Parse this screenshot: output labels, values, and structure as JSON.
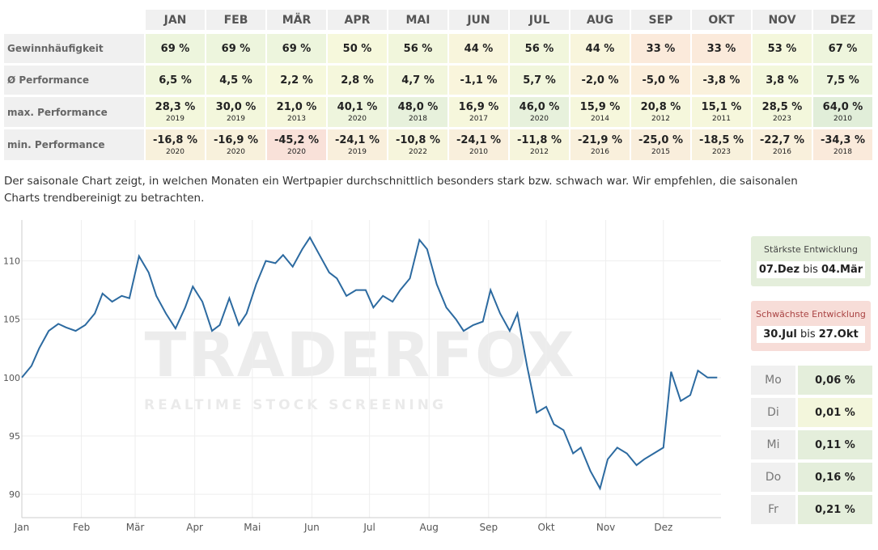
{
  "table": {
    "headers": [
      "JAN",
      "FEB",
      "MÄR",
      "APR",
      "MAI",
      "JUN",
      "JUL",
      "AUG",
      "SEP",
      "OKT",
      "NOV",
      "DEZ"
    ],
    "rows": [
      {
        "label": "Gewinnhäufigkeit",
        "cells": [
          {
            "text": "69 %"
          },
          {
            "text": "69 %"
          },
          {
            "text": "69 %"
          },
          {
            "text": "50 %"
          },
          {
            "text": "56 %"
          },
          {
            "text": "44 %"
          },
          {
            "text": "56 %"
          },
          {
            "text": "44 %"
          },
          {
            "text": "33 %"
          },
          {
            "text": "33 %"
          },
          {
            "text": "53 %"
          },
          {
            "text": "67 %"
          }
        ],
        "colors": [
          "#edf5dd",
          "#edf5dd",
          "#edf5dd",
          "#f6f8dc",
          "#f1f6dc",
          "#f8f5dc",
          "#f1f6dc",
          "#f8f5dc",
          "#fbeadb",
          "#fbeadb",
          "#f4f7dc",
          "#eef5dd"
        ]
      },
      {
        "label": "Ø Performance",
        "cells": [
          {
            "text": "6,5 %"
          },
          {
            "text": "4,5 %"
          },
          {
            "text": "2,2 %"
          },
          {
            "text": "2,8 %"
          },
          {
            "text": "4,7 %"
          },
          {
            "text": "-1,1 %"
          },
          {
            "text": "5,7 %"
          },
          {
            "text": "-2,0 %"
          },
          {
            "text": "-5,0 %"
          },
          {
            "text": "-3,8 %"
          },
          {
            "text": "3,8 %"
          },
          {
            "text": "7,5 %"
          }
        ],
        "colors": [
          "#f0f6dc",
          "#f3f7dc",
          "#f6f8dc",
          "#f5f7dc",
          "#f2f6dc",
          "#f9f5dc",
          "#f1f6dc",
          "#f9f2dc",
          "#fbeedb",
          "#faf1dc",
          "#f3f7dc",
          "#edf5dd"
        ]
      },
      {
        "label": "max. Performance",
        "cells": [
          {
            "text": "28,3 %",
            "sub": "2019"
          },
          {
            "text": "30,0 %",
            "sub": "2019"
          },
          {
            "text": "21,0 %",
            "sub": "2013"
          },
          {
            "text": "40,1 %",
            "sub": "2020"
          },
          {
            "text": "48,0 %",
            "sub": "2018"
          },
          {
            "text": "16,9 %",
            "sub": "2017"
          },
          {
            "text": "46,0 %",
            "sub": "2020"
          },
          {
            "text": "15,9 %",
            "sub": "2014"
          },
          {
            "text": "20,8 %",
            "sub": "2012"
          },
          {
            "text": "15,1 %",
            "sub": "2011"
          },
          {
            "text": "28,5 %",
            "sub": "2023"
          },
          {
            "text": "64,0 %",
            "sub": "2010"
          }
        ],
        "colors": [
          "#f3f7dc",
          "#f3f7dc",
          "#f5f7dc",
          "#eef5dd",
          "#e7f1dc",
          "#f6f7dc",
          "#e7f1dc",
          "#f6f7dc",
          "#f5f7dc",
          "#f6f7dc",
          "#f3f7dc",
          "#e1eed9"
        ]
      },
      {
        "label": "min. Performance",
        "cells": [
          {
            "text": "-16,8 %",
            "sub": "2020"
          },
          {
            "text": "-16,9 %",
            "sub": "2020"
          },
          {
            "text": "-45,2 %",
            "sub": "2020"
          },
          {
            "text": "-24,1 %",
            "sub": "2019"
          },
          {
            "text": "-10,8 %",
            "sub": "2022"
          },
          {
            "text": "-24,1 %",
            "sub": "2010"
          },
          {
            "text": "-11,8 %",
            "sub": "2012"
          },
          {
            "text": "-21,9 %",
            "sub": "2016"
          },
          {
            "text": "-25,0 %",
            "sub": "2015"
          },
          {
            "text": "-18,5 %",
            "sub": "2023"
          },
          {
            "text": "-22,7 %",
            "sub": "2016"
          },
          {
            "text": "-34,3 %",
            "sub": "2018"
          }
        ],
        "colors": [
          "#f8f1dc",
          "#f8f1dc",
          "#f9e1d9",
          "#f9efdc",
          "#f6f5dc",
          "#f9efdc",
          "#f6f5dc",
          "#f9f0dc",
          "#f9eedc",
          "#f8f1dc",
          "#f9f0dc",
          "#faeadb"
        ]
      }
    ]
  },
  "description": "Der saisonale Chart zeigt, in welchen Monaten ein Wertpapier durchschnittlich besonders stark bzw. schwach war. Wir empfehlen, die saisonalen Charts trendbereinigt zu betrachten.",
  "chart_data": {
    "type": "line",
    "color": "#2c6aa0",
    "grid": true,
    "watermark": {
      "brand": "TRADERFOX",
      "tagline": "REALTIME STOCK SCREENING"
    },
    "x": [
      1,
      6,
      10,
      15,
      20,
      24,
      29,
      34,
      39,
      43,
      48,
      53,
      57,
      62,
      67,
      71,
      76,
      81,
      86,
      90,
      95,
      100,
      104,
      109,
      114,
      118,
      123,
      128,
      133,
      137,
      142,
      147,
      151,
      156,
      161,
      165,
      170,
      175,
      180,
      184,
      189,
      194,
      198,
      203,
      208,
      212,
      217,
      222,
      227,
      231,
      236,
      241,
      245,
      250,
      255,
      259,
      264,
      269,
      274,
      278,
      283,
      288,
      292,
      297,
      302,
      306,
      311,
      316,
      321,
      325,
      330,
      335,
      339,
      344,
      349,
      353,
      358,
      363
    ],
    "values": [
      100,
      101,
      102.5,
      104,
      104.6,
      104.3,
      104.0,
      104.5,
      105.5,
      107.2,
      106.5,
      107.0,
      106.8,
      110.4,
      109.0,
      107.0,
      105.5,
      104.2,
      106.0,
      107.8,
      106.5,
      104.0,
      104.5,
      106.8,
      104.5,
      105.5,
      108.0,
      110.0,
      109.8,
      110.5,
      109.5,
      111.0,
      112.0,
      110.5,
      109.0,
      108.5,
      107.0,
      107.5,
      107.5,
      106.0,
      107.0,
      106.5,
      107.5,
      108.5,
      111.8,
      111.0,
      108.0,
      106.0,
      105.0,
      104.0,
      104.5,
      104.8,
      107.5,
      105.5,
      104.0,
      105.5,
      101.0,
      97.0,
      97.5,
      96.0,
      95.5,
      93.5,
      94.0,
      92.0,
      90.5,
      93.0,
      94.0,
      93.5,
      92.5,
      93.0,
      93.5,
      94.0,
      100.5,
      98.0,
      98.5,
      100.6,
      100.0,
      100.0
    ],
    "xlim": [
      1,
      365
    ],
    "xticks": [
      {
        "value": 1,
        "label": "Jan"
      },
      {
        "value": 32,
        "label": "Feb"
      },
      {
        "value": 60,
        "label": "Mär"
      },
      {
        "value": 91,
        "label": "Apr"
      },
      {
        "value": 121,
        "label": "Mai"
      },
      {
        "value": 152,
        "label": "Jun"
      },
      {
        "value": 182,
        "label": "Jul"
      },
      {
        "value": 213,
        "label": "Aug"
      },
      {
        "value": 244,
        "label": "Sep"
      },
      {
        "value": 274,
        "label": "Okt"
      },
      {
        "value": 305,
        "label": "Nov"
      },
      {
        "value": 335,
        "label": "Dez"
      }
    ],
    "ylim": [
      88,
      113.5
    ],
    "yticks": [
      90,
      95,
      100,
      105,
      110
    ]
  },
  "strongest": {
    "title": "Stärkste Entwicklung",
    "from": "07.Dez",
    "bis": "bis",
    "to": "04.Mär"
  },
  "weakest": {
    "title": "Schwächste Entwicklung",
    "from": "30.Jul",
    "bis": "bis",
    "to": "27.Okt"
  },
  "weekdays": [
    {
      "day": "Mo",
      "value": "0,06 %"
    },
    {
      "day": "Di",
      "value": "0,01 %"
    },
    {
      "day": "Mi",
      "value": "0,11 %"
    },
    {
      "day": "Do",
      "value": "0,16 %"
    },
    {
      "day": "Fr",
      "value": "0,21 %"
    }
  ]
}
